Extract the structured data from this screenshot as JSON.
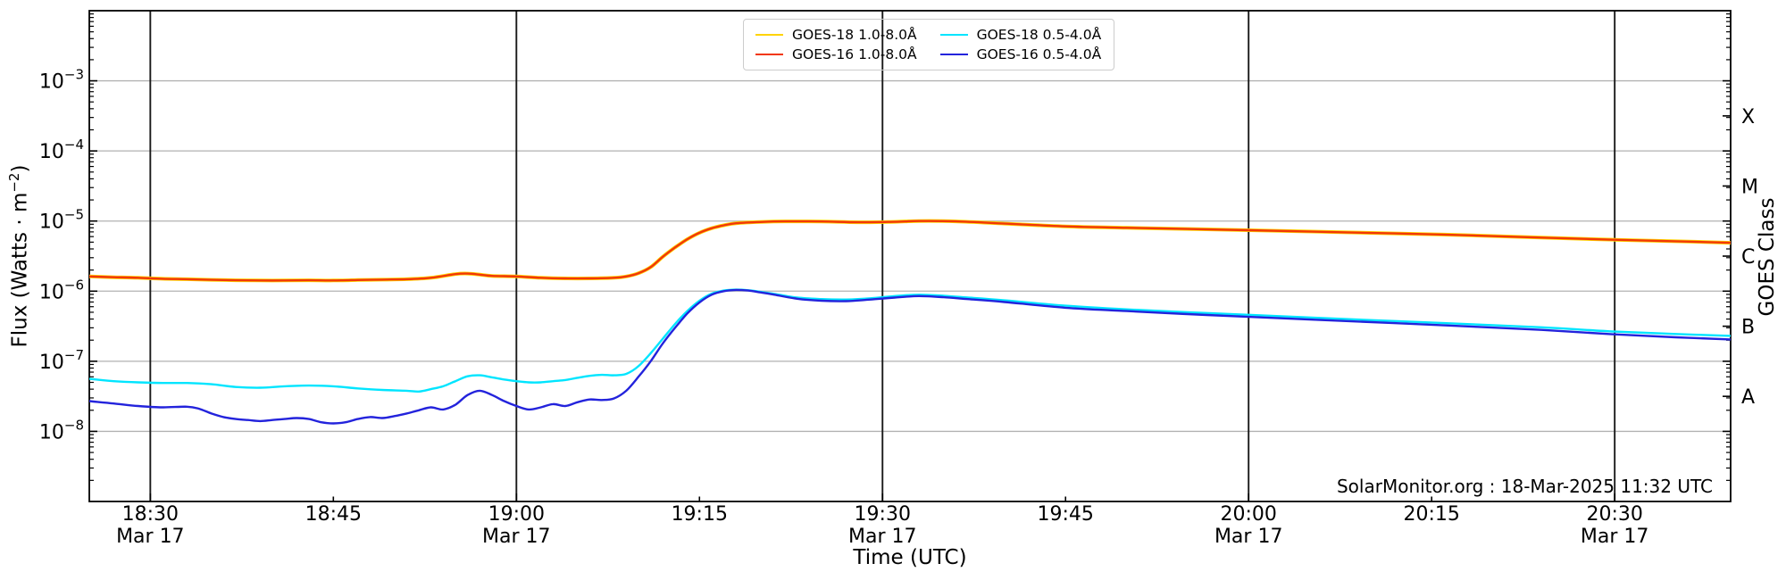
{
  "chart_data": {
    "type": "line",
    "xlabel": "Time (UTC)",
    "ylabel": {
      "pre": "Flux (Watts · m",
      "sup": "−2",
      "post": ")"
    },
    "right_axis_label": "GOES Class",
    "annotation": "SolarMonitor.org : 18-Mar-2025 11:32 UTC",
    "x_domain_minutes_after_1800_utc": [
      25,
      159.5
    ],
    "y_domain_flux": [
      1e-09,
      0.01
    ],
    "grid": {
      "h_color": "#b2b2b2",
      "v_color": "#1a1a1a",
      "spine_color": "#000000"
    },
    "x_ticks": [
      {
        "t": 30,
        "label": "18:30",
        "date": "Mar 17"
      },
      {
        "t": 45,
        "label": "18:45"
      },
      {
        "t": 60,
        "label": "19:00",
        "date": "Mar 17"
      },
      {
        "t": 75,
        "label": "19:15"
      },
      {
        "t": 90,
        "label": "19:30",
        "date": "Mar 17"
      },
      {
        "t": 105,
        "label": "19:45"
      },
      {
        "t": 120,
        "label": "20:00",
        "date": "Mar 17"
      },
      {
        "t": 135,
        "label": "20:15"
      },
      {
        "t": 150,
        "label": "20:30",
        "date": "Mar 17"
      }
    ],
    "y_ticks": [
      {
        "base": "10",
        "exp": "−3",
        "value": 0.001
      },
      {
        "base": "10",
        "exp": "−4",
        "value": 0.0001
      },
      {
        "base": "10",
        "exp": "−5",
        "value": 1e-05
      },
      {
        "base": "10",
        "exp": "−6",
        "value": 1e-06
      },
      {
        "base": "10",
        "exp": "−7",
        "value": 1e-07
      },
      {
        "base": "10",
        "exp": "−8",
        "value": 1e-08
      }
    ],
    "goes_classes": [
      {
        "label": "X",
        "flux": 0.000316
      },
      {
        "label": "M",
        "flux": 3.16e-05
      },
      {
        "label": "C",
        "flux": 3.16e-06
      },
      {
        "label": "B",
        "flux": 3.16e-07
      },
      {
        "label": "A",
        "flux": 3.16e-08
      }
    ],
    "points_sets": {
      "long": [
        [
          25,
          1.62e-06
        ],
        [
          27,
          1.58e-06
        ],
        [
          29,
          1.55e-06
        ],
        [
          31,
          1.5e-06
        ],
        [
          33,
          1.48e-06
        ],
        [
          35,
          1.45e-06
        ],
        [
          37,
          1.43e-06
        ],
        [
          39,
          1.42e-06
        ],
        [
          41,
          1.42e-06
        ],
        [
          43,
          1.43e-06
        ],
        [
          45,
          1.42e-06
        ],
        [
          47,
          1.44e-06
        ],
        [
          49,
          1.46e-06
        ],
        [
          51,
          1.48e-06
        ],
        [
          53,
          1.55e-06
        ],
        [
          55,
          1.75e-06
        ],
        [
          56,
          1.78e-06
        ],
        [
          57,
          1.72e-06
        ],
        [
          58,
          1.65e-06
        ],
        [
          60,
          1.62e-06
        ],
        [
          62,
          1.55e-06
        ],
        [
          64,
          1.52e-06
        ],
        [
          66,
          1.52e-06
        ],
        [
          68,
          1.55e-06
        ],
        [
          69,
          1.62e-06
        ],
        [
          70,
          1.8e-06
        ],
        [
          71,
          2.2e-06
        ],
        [
          72,
          3.1e-06
        ],
        [
          73,
          4.2e-06
        ],
        [
          74,
          5.5e-06
        ],
        [
          75,
          6.8e-06
        ],
        [
          76,
          7.9e-06
        ],
        [
          77,
          8.7e-06
        ],
        [
          78,
          9.3e-06
        ],
        [
          80,
          9.7e-06
        ],
        [
          82,
          9.9e-06
        ],
        [
          85,
          9.85e-06
        ],
        [
          88,
          9.6e-06
        ],
        [
          91,
          9.75e-06
        ],
        [
          93,
          1e-05
        ],
        [
          96,
          9.9e-06
        ],
        [
          100,
          9.2e-06
        ],
        [
          105,
          8.4e-06
        ],
        [
          110,
          8e-06
        ],
        [
          115,
          7.7e-06
        ],
        [
          120,
          7.4e-06
        ],
        [
          128,
          6.9e-06
        ],
        [
          136,
          6.4e-06
        ],
        [
          144,
          5.8e-06
        ],
        [
          150,
          5.4e-06
        ],
        [
          155,
          5.15e-06
        ],
        [
          159.5,
          4.9e-06
        ]
      ],
      "short18": [
        [
          25,
          5.6e-08
        ],
        [
          27,
          5.2e-08
        ],
        [
          29,
          5e-08
        ],
        [
          31,
          4.9e-08
        ],
        [
          33,
          4.9e-08
        ],
        [
          35,
          4.7e-08
        ],
        [
          37,
          4.3e-08
        ],
        [
          39,
          4.2e-08
        ],
        [
          41,
          4.4e-08
        ],
        [
          43,
          4.5e-08
        ],
        [
          45,
          4.4e-08
        ],
        [
          47,
          4.1e-08
        ],
        [
          49,
          3.9e-08
        ],
        [
          51,
          3.8e-08
        ],
        [
          52,
          3.7e-08
        ],
        [
          53,
          4e-08
        ],
        [
          54,
          4.4e-08
        ],
        [
          55,
          5.2e-08
        ],
        [
          56,
          6.1e-08
        ],
        [
          57,
          6.3e-08
        ],
        [
          58,
          5.9e-08
        ],
        [
          59,
          5.5e-08
        ],
        [
          60,
          5.2e-08
        ],
        [
          61,
          5e-08
        ],
        [
          62,
          5e-08
        ],
        [
          63,
          5.2e-08
        ],
        [
          64,
          5.4e-08
        ],
        [
          65,
          5.8e-08
        ],
        [
          66,
          6.2e-08
        ],
        [
          67,
          6.4e-08
        ],
        [
          68,
          6.3e-08
        ],
        [
          69,
          6.6e-08
        ],
        [
          70,
          8.5e-08
        ],
        [
          71,
          1.3e-07
        ],
        [
          72,
          2.1e-07
        ],
        [
          73,
          3.4e-07
        ],
        [
          74,
          5.2e-07
        ],
        [
          75,
          7.3e-07
        ],
        [
          76,
          9.2e-07
        ],
        [
          77,
          1.02e-06
        ],
        [
          78,
          1.05e-06
        ],
        [
          79,
          1.03e-06
        ],
        [
          80,
          9.8e-07
        ],
        [
          81,
          9.2e-07
        ],
        [
          83,
          8.1e-07
        ],
        [
          85,
          7.7e-07
        ],
        [
          87,
          7.6e-07
        ],
        [
          89,
          7.9e-07
        ],
        [
          91,
          8.5e-07
        ],
        [
          93,
          8.9e-07
        ],
        [
          95,
          8.6e-07
        ],
        [
          97,
          8.1e-07
        ],
        [
          100,
          7.4e-07
        ],
        [
          105,
          6.2e-07
        ],
        [
          110,
          5.5e-07
        ],
        [
          115,
          5e-07
        ],
        [
          120,
          4.6e-07
        ],
        [
          128,
          4e-07
        ],
        [
          136,
          3.5e-07
        ],
        [
          144,
          3.05e-07
        ],
        [
          150,
          2.65e-07
        ],
        [
          155,
          2.45e-07
        ],
        [
          159.5,
          2.3e-07
        ]
      ],
      "short16": [
        [
          25,
          2.7e-08
        ],
        [
          27,
          2.5e-08
        ],
        [
          29,
          2.3e-08
        ],
        [
          31,
          2.2e-08
        ],
        [
          33,
          2.25e-08
        ],
        [
          34,
          2.1e-08
        ],
        [
          35,
          1.8e-08
        ],
        [
          36,
          1.6e-08
        ],
        [
          37,
          1.5e-08
        ],
        [
          38,
          1.45e-08
        ],
        [
          39,
          1.4e-08
        ],
        [
          40,
          1.45e-08
        ],
        [
          41,
          1.5e-08
        ],
        [
          42,
          1.55e-08
        ],
        [
          43,
          1.5e-08
        ],
        [
          44,
          1.35e-08
        ],
        [
          45,
          1.3e-08
        ],
        [
          46,
          1.35e-08
        ],
        [
          47,
          1.5e-08
        ],
        [
          48,
          1.6e-08
        ],
        [
          49,
          1.55e-08
        ],
        [
          50,
          1.65e-08
        ],
        [
          51,
          1.8e-08
        ],
        [
          52,
          2e-08
        ],
        [
          53,
          2.2e-08
        ],
        [
          54,
          2.05e-08
        ],
        [
          55,
          2.4e-08
        ],
        [
          56,
          3.3e-08
        ],
        [
          57,
          3.8e-08
        ],
        [
          58,
          3.3e-08
        ],
        [
          59,
          2.7e-08
        ],
        [
          60,
          2.3e-08
        ],
        [
          61,
          2.05e-08
        ],
        [
          62,
          2.2e-08
        ],
        [
          63,
          2.45e-08
        ],
        [
          64,
          2.3e-08
        ],
        [
          65,
          2.6e-08
        ],
        [
          66,
          2.85e-08
        ],
        [
          67,
          2.8e-08
        ],
        [
          68,
          2.95e-08
        ],
        [
          69,
          3.8e-08
        ],
        [
          70,
          6e-08
        ],
        [
          71,
          1e-07
        ],
        [
          72,
          1.8e-07
        ],
        [
          73,
          3e-07
        ],
        [
          74,
          4.8e-07
        ],
        [
          75,
          6.9e-07
        ],
        [
          76,
          8.9e-07
        ],
        [
          77,
          1e-06
        ],
        [
          78,
          1.04e-06
        ],
        [
          79,
          1.02e-06
        ],
        [
          80,
          9.6e-07
        ],
        [
          81,
          9e-07
        ],
        [
          83,
          7.8e-07
        ],
        [
          85,
          7.3e-07
        ],
        [
          87,
          7.2e-07
        ],
        [
          89,
          7.6e-07
        ],
        [
          91,
          8.1e-07
        ],
        [
          93,
          8.5e-07
        ],
        [
          95,
          8.2e-07
        ],
        [
          97,
          7.7e-07
        ],
        [
          100,
          7e-07
        ],
        [
          105,
          5.8e-07
        ],
        [
          110,
          5.2e-07
        ],
        [
          115,
          4.7e-07
        ],
        [
          120,
          4.3e-07
        ],
        [
          128,
          3.75e-07
        ],
        [
          136,
          3.25e-07
        ],
        [
          144,
          2.8e-07
        ],
        [
          150,
          2.42e-07
        ],
        [
          155,
          2.2e-07
        ],
        [
          159.5,
          2.05e-07
        ]
      ]
    },
    "series": [
      {
        "id": "goes18-long",
        "name": "GOES-18 1.0-8.0Å",
        "color": "#ffd300",
        "width": 4.0,
        "points": "long"
      },
      {
        "id": "goes16-long",
        "name": "GOES-16 1.0-8.0Å",
        "color": "#f23708",
        "width": 2.4,
        "points": "long"
      },
      {
        "id": "goes18-short",
        "name": "GOES-18 0.5-4.0Å",
        "color": "#00e5ff",
        "width": 2.4,
        "points": "short18"
      },
      {
        "id": "goes16-short",
        "name": "GOES-16 0.5-4.0Å",
        "color": "#2323dc",
        "width": 2.4,
        "points": "short16"
      }
    ],
    "legend_position": "upper center"
  }
}
